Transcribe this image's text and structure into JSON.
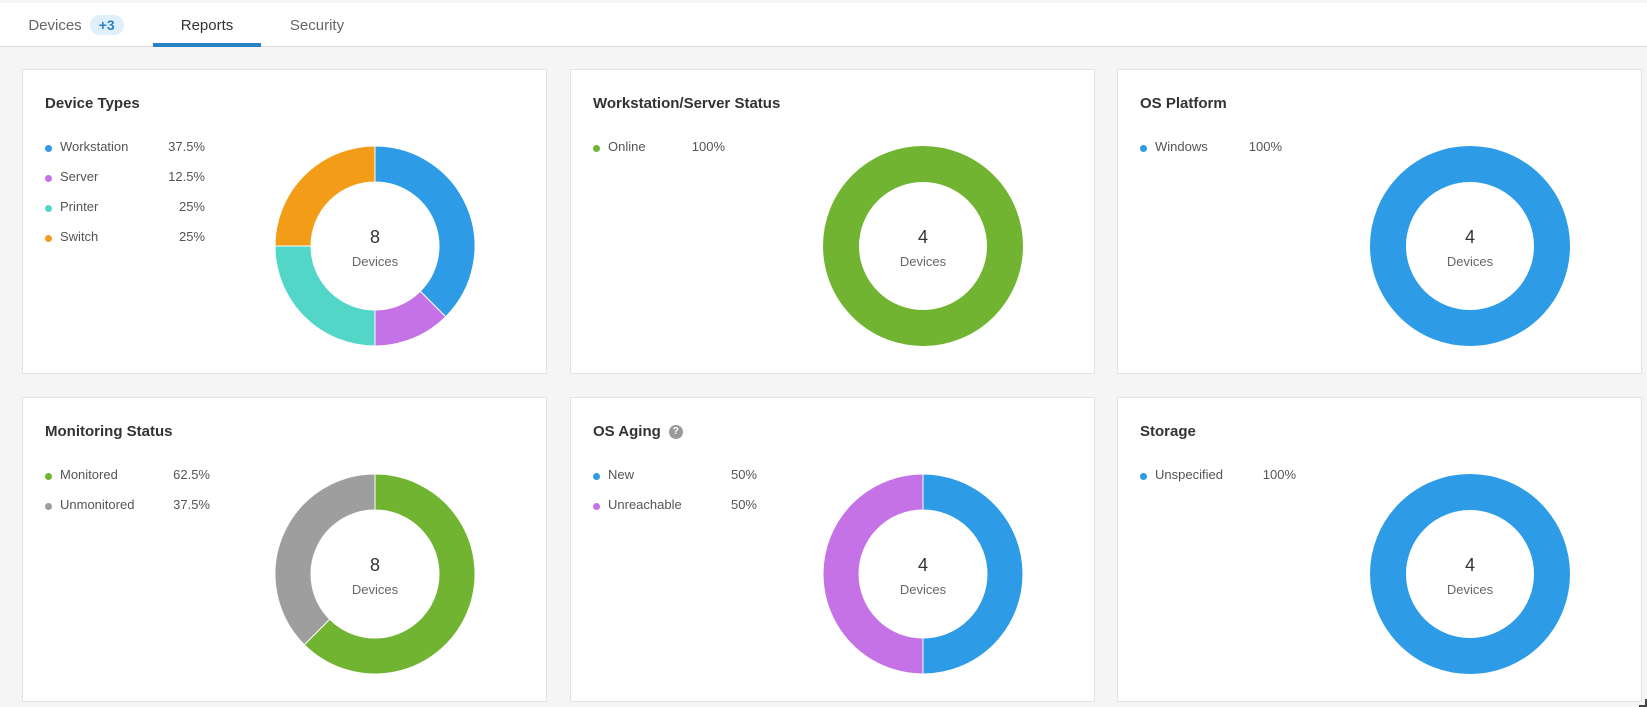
{
  "tabs": {
    "devices": {
      "label": "Devices",
      "badge": "+3"
    },
    "reports": {
      "label": "Reports"
    },
    "security": {
      "label": "Security"
    }
  },
  "center_sub_label": "Devices",
  "cards": [
    {
      "title": "Device Types",
      "help": false,
      "center_value": "8",
      "legend": [
        {
          "label": "Workstation",
          "percent": "37.5%",
          "value": 37.5,
          "color": "#2d9be6"
        },
        {
          "label": "Server",
          "percent": "12.5%",
          "value": 12.5,
          "color": "#c472e6"
        },
        {
          "label": "Printer",
          "percent": "25%",
          "value": 25,
          "color": "#52d6c8"
        },
        {
          "label": "Switch",
          "percent": "25%",
          "value": 25,
          "color": "#f39c18"
        }
      ]
    },
    {
      "title": "Workstation/Server Status",
      "help": false,
      "center_value": "4",
      "legend": [
        {
          "label": "Online",
          "percent": "100%",
          "value": 100,
          "color": "#70b432"
        }
      ]
    },
    {
      "title": "OS Platform",
      "help": false,
      "center_value": "4",
      "legend": [
        {
          "label": "Windows",
          "percent": "100%",
          "value": 100,
          "color": "#2d9be6"
        }
      ]
    },
    {
      "title": "Monitoring Status",
      "help": false,
      "center_value": "8",
      "legend": [
        {
          "label": "Monitored",
          "percent": "62.5%",
          "value": 62.5,
          "color": "#70b432"
        },
        {
          "label": "Unmonitored",
          "percent": "37.5%",
          "value": 37.5,
          "color": "#9e9e9e"
        }
      ]
    },
    {
      "title": "OS Aging",
      "help": true,
      "center_value": "4",
      "legend": [
        {
          "label": "New",
          "percent": "50%",
          "value": 50,
          "color": "#2d9be6"
        },
        {
          "label": "Unreachable",
          "percent": "50%",
          "value": 50,
          "color": "#c472e6"
        }
      ]
    },
    {
      "title": "Storage",
      "help": false,
      "center_value": "4",
      "legend": [
        {
          "label": "Unspecified",
          "percent": "100%",
          "value": 100,
          "color": "#2d9be6"
        }
      ]
    }
  ]
}
